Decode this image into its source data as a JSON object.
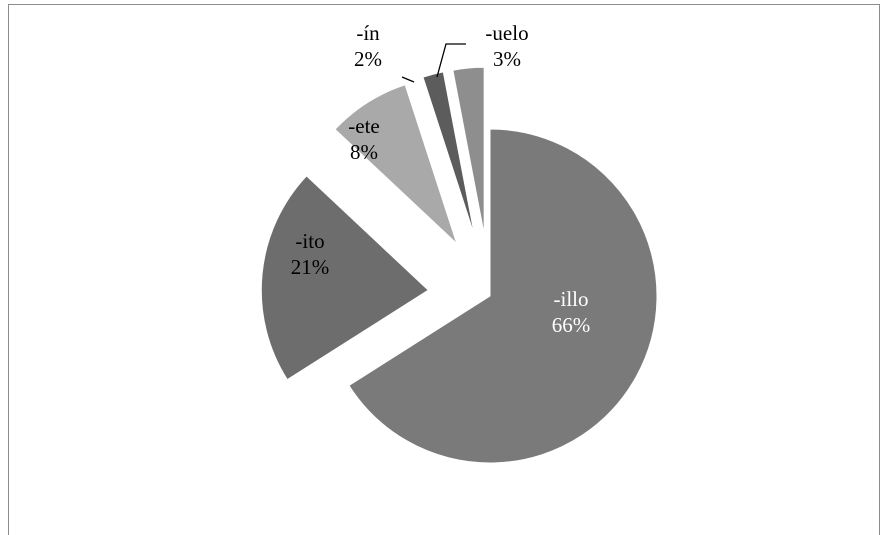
{
  "chart_data": {
    "type": "pie",
    "title": "",
    "legend": "none",
    "slices": [
      {
        "label": "-illo",
        "value": 66,
        "value_label": "66%",
        "color": "#7a7a7a",
        "exploded": false,
        "label_color": "#ffffff"
      },
      {
        "label": "-ito",
        "value": 21,
        "value_label": "21%",
        "color": "#6d6d6d",
        "exploded": true,
        "label_color": "#000000"
      },
      {
        "label": "-ete",
        "value": 8,
        "value_label": "8%",
        "color": "#a9a9a9",
        "exploded": true,
        "label_color": "#000000"
      },
      {
        "label": "-ín",
        "value": 2,
        "value_label": "2%",
        "color": "#5c5c5c",
        "exploded": true,
        "label_color": "#000000"
      },
      {
        "label": "-uelo",
        "value": 3,
        "value_label": "3%",
        "color": "#8e8e8e",
        "exploded": true,
        "label_color": "#000000"
      }
    ]
  }
}
